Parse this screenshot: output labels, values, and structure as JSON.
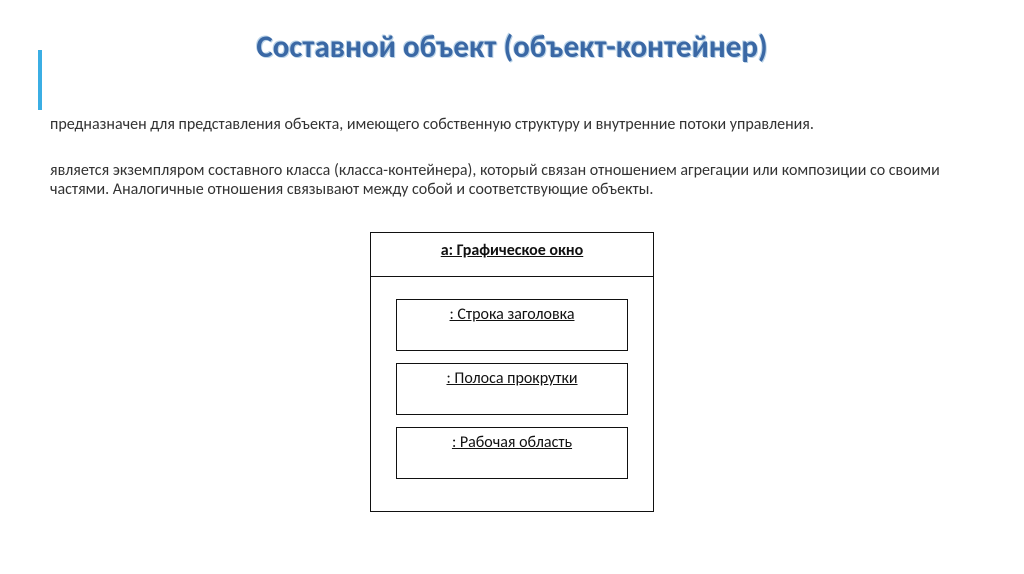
{
  "title": "Составной объект (объект-контейнер)",
  "paragraph1": "предназначен для представления объекта, имеющего собственную структуру и внутренние потоки управления.",
  "paragraph2": "является экземпляром составного класса (класса-контейнера), который связан отношением агрегации или композиции со своими частями. Аналогичные отношения связывают между собой и соответствующие объекты.",
  "diagram": {
    "type": "uml-composite-object",
    "container_label": "а: Графическое окно",
    "parts": [
      ": Строка заголовка",
      ": Полоса прокрутки",
      ": Рабочая область"
    ],
    "border_color": "#111111",
    "background_color": "#ffffff",
    "font_size": 16,
    "underline": true
  },
  "style": {
    "title_color": "#3a68a5",
    "title_shadow": "#bcd4e8",
    "accent_bar_color": "#3baee4",
    "body_text_color": "#333333",
    "body_font_size": 16,
    "title_font_size": 31
  }
}
